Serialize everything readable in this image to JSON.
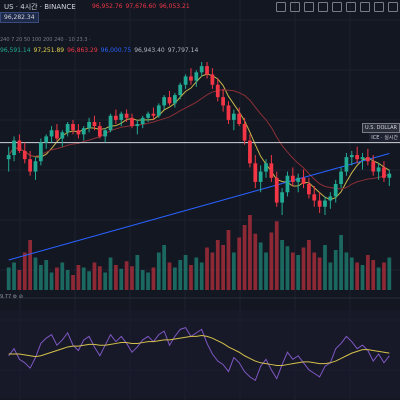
{
  "header": {
    "symbol": "US · 4시간 · BINANCE",
    "price_badge": "96,282.34",
    "ohlc": [
      {
        "label": "96,952.76",
        "color": "#f23645"
      },
      {
        "label": "97,676.60",
        "color": "#f23645"
      },
      {
        "label": "96,053.21",
        "color": "#f23645"
      }
    ],
    "ma_periods": "240  7 20 50 100 200 240",
    "ma_small": "· 10 23.3 ·",
    "ma_values": [
      {
        "label": "96,591.14",
        "color": "#22ab94"
      },
      {
        "label": "97,251.89",
        "color": "#e8d44d"
      },
      {
        "label": "96,863.29",
        "color": "#f23645"
      },
      {
        "label": "96,000.75",
        "color": "#2962ff"
      },
      {
        "label": "96,943.40",
        "color": "#b2b5be"
      },
      {
        "label": "97,797.14",
        "color": "#b2b5be"
      }
    ]
  },
  "tags": {
    "dxy": "U.S. DOLLAR",
    "ice": "ICE · 실시간"
  },
  "rsi": {
    "label": "9.77 ⚙ ⊘"
  },
  "colors": {
    "up": "#22ab94",
    "down": "#f23645",
    "ma_yellow": "#c9b64a",
    "ma_red": "#8b2f36",
    "ma_blue": "#2962ff",
    "rsi_line": "#7e57c2",
    "rsi_ma": "#d4c04a"
  },
  "chart_data": [
    {
      "type": "candlestick",
      "title": "",
      "candles": [
        [
          96.2,
          96.8,
          95.6,
          96.4
        ],
        [
          96.4,
          97.3,
          96.1,
          97.1
        ],
        [
          97.1,
          97.4,
          96.5,
          96.6
        ],
        [
          96.6,
          97.0,
          96.0,
          96.2
        ],
        [
          96.2,
          96.6,
          95.4,
          95.6
        ],
        [
          95.6,
          96.3,
          95.2,
          96.1
        ],
        [
          96.1,
          97.2,
          95.9,
          97.0
        ],
        [
          97.0,
          97.4,
          96.7,
          97.3
        ],
        [
          97.3,
          97.8,
          97.0,
          97.6
        ],
        [
          97.6,
          97.9,
          97.1,
          97.2
        ],
        [
          97.2,
          97.6,
          96.8,
          97.5
        ],
        [
          97.5,
          98.0,
          97.3,
          97.9
        ],
        [
          97.9,
          98.1,
          97.4,
          97.6
        ],
        [
          97.6,
          97.9,
          97.2,
          97.4
        ],
        [
          97.4,
          97.8,
          97.1,
          97.7
        ],
        [
          97.7,
          98.2,
          97.5,
          98.0
        ],
        [
          98.0,
          98.3,
          97.6,
          97.8
        ],
        [
          97.8,
          98.0,
          97.2,
          97.3
        ],
        [
          97.3,
          97.7,
          97.0,
          97.6
        ],
        [
          97.6,
          98.4,
          97.5,
          98.3
        ],
        [
          98.3,
          98.6,
          97.9,
          98.1
        ],
        [
          98.1,
          98.5,
          97.8,
          98.4
        ],
        [
          98.4,
          98.6,
          98.0,
          98.2
        ],
        [
          98.2,
          98.4,
          97.7,
          97.8
        ],
        [
          97.8,
          98.1,
          97.4,
          97.9
        ],
        [
          97.9,
          98.3,
          97.7,
          98.2
        ],
        [
          98.2,
          98.5,
          98.0,
          98.4
        ],
        [
          98.4,
          98.7,
          98.1,
          98.3
        ],
        [
          98.3,
          98.9,
          98.2,
          98.8
        ],
        [
          98.8,
          99.3,
          98.6,
          99.2
        ],
        [
          99.2,
          99.5,
          98.8,
          98.9
        ],
        [
          98.9,
          99.4,
          98.7,
          99.3
        ],
        [
          99.3,
          99.9,
          99.1,
          99.8
        ],
        [
          99.8,
          100.3,
          99.6,
          100.2
        ],
        [
          100.2,
          100.6,
          99.8,
          100.0
        ],
        [
          100.0,
          100.5,
          99.7,
          100.4
        ],
        [
          100.4,
          100.9,
          100.2,
          100.7
        ],
        [
          100.7,
          100.9,
          100.1,
          100.3
        ],
        [
          100.3,
          100.6,
          99.6,
          99.8
        ],
        [
          99.8,
          100.1,
          99.0,
          99.2
        ],
        [
          99.2,
          99.6,
          98.5,
          98.8
        ],
        [
          98.8,
          99.0,
          97.9,
          98.1
        ],
        [
          98.1,
          98.6,
          97.6,
          98.4
        ],
        [
          98.4,
          98.7,
          97.8,
          97.9
        ],
        [
          97.9,
          98.2,
          96.9,
          97.1
        ],
        [
          97.1,
          97.4,
          95.8,
          96.0
        ],
        [
          96.0,
          96.4,
          94.8,
          95.1
        ],
        [
          95.1,
          95.9,
          94.6,
          95.6
        ],
        [
          95.6,
          96.2,
          95.3,
          96.0
        ],
        [
          96.0,
          96.4,
          95.1,
          95.3
        ],
        [
          95.3,
          95.6,
          93.9,
          94.1
        ],
        [
          94.1,
          94.8,
          93.5,
          94.6
        ],
        [
          94.6,
          95.6,
          94.4,
          95.4
        ],
        [
          95.4,
          95.8,
          94.9,
          95.1
        ],
        [
          95.1,
          95.5,
          94.6,
          95.3
        ],
        [
          95.3,
          95.7,
          94.8,
          95.0
        ],
        [
          95.0,
          95.3,
          94.3,
          94.5
        ],
        [
          94.5,
          94.9,
          93.9,
          94.2
        ],
        [
          94.2,
          94.6,
          93.6,
          93.9
        ],
        [
          93.9,
          94.4,
          93.5,
          94.2
        ],
        [
          94.2,
          94.6,
          93.8,
          94.4
        ],
        [
          94.4,
          95.2,
          94.1,
          95.0
        ],
        [
          95.0,
          95.8,
          94.8,
          95.6
        ],
        [
          95.6,
          96.5,
          95.4,
          96.3
        ],
        [
          96.3,
          96.6,
          95.9,
          96.4
        ],
        [
          96.4,
          96.8,
          96.0,
          96.2
        ],
        [
          96.2,
          96.5,
          95.7,
          96.3
        ],
        [
          96.3,
          96.7,
          95.9,
          96.1
        ],
        [
          96.1,
          96.4,
          95.4,
          95.6
        ],
        [
          95.6,
          96.0,
          95.2,
          95.8
        ],
        [
          95.8,
          96.1,
          95.1,
          95.3
        ],
        [
          95.3,
          95.7,
          94.9,
          95.5
        ]
      ],
      "volume": [
        18,
        22,
        16,
        30,
        40,
        26,
        20,
        24,
        14,
        18,
        22,
        16,
        12,
        20,
        18,
        15,
        22,
        19,
        14,
        26,
        20,
        17,
        23,
        19,
        28,
        16,
        14,
        18,
        30,
        36,
        22,
        18,
        24,
        28,
        20,
        26,
        22,
        34,
        30,
        40,
        36,
        48,
        30,
        42,
        52,
        60,
        45,
        38,
        30,
        46,
        55,
        40,
        35,
        30,
        28,
        34,
        40,
        30,
        26,
        36,
        22,
        32,
        44,
        30,
        26,
        22,
        20,
        28,
        24,
        18,
        22,
        26
      ],
      "overlays": [
        "MA 7",
        "MA 20",
        "MA 50",
        "MA 200",
        "MA 240"
      ],
      "price_line": 97.0
    },
    {
      "type": "line",
      "title": "",
      "series": [
        {
          "values": [
            48,
            56,
            44,
            40,
            34,
            46,
            62,
            68,
            72,
            60,
            66,
            74,
            60,
            54,
            66,
            70,
            58,
            48,
            60,
            72,
            64,
            70,
            62,
            52,
            58,
            66,
            70,
            64,
            72,
            76,
            60,
            70,
            78,
            80,
            70,
            74,
            78,
            62,
            50,
            42,
            38,
            30,
            46,
            40,
            30,
            24,
            20,
            36,
            44,
            32,
            22,
            38,
            52,
            44,
            48,
            40,
            32,
            28,
            24,
            36,
            40,
            56,
            62,
            70,
            64,
            56,
            60,
            54,
            42,
            50,
            40,
            48
          ]
        },
        {
          "values": [
            50,
            50,
            50,
            49,
            48,
            47,
            48,
            50,
            52,
            54,
            56,
            58,
            59,
            59,
            60,
            61,
            61,
            60,
            60,
            61,
            62,
            63,
            63,
            62,
            62,
            63,
            64,
            64,
            65,
            66,
            66,
            67,
            68,
            69,
            70,
            70,
            71,
            70,
            68,
            65,
            62,
            58,
            55,
            52,
            48,
            45,
            42,
            40,
            39,
            38,
            37,
            37,
            38,
            39,
            40,
            41,
            41,
            40,
            39,
            39,
            40,
            42,
            45,
            48,
            51,
            53,
            55,
            55,
            54,
            53,
            52,
            51
          ]
        }
      ],
      "ylim": [
        0,
        100
      ]
    }
  ]
}
